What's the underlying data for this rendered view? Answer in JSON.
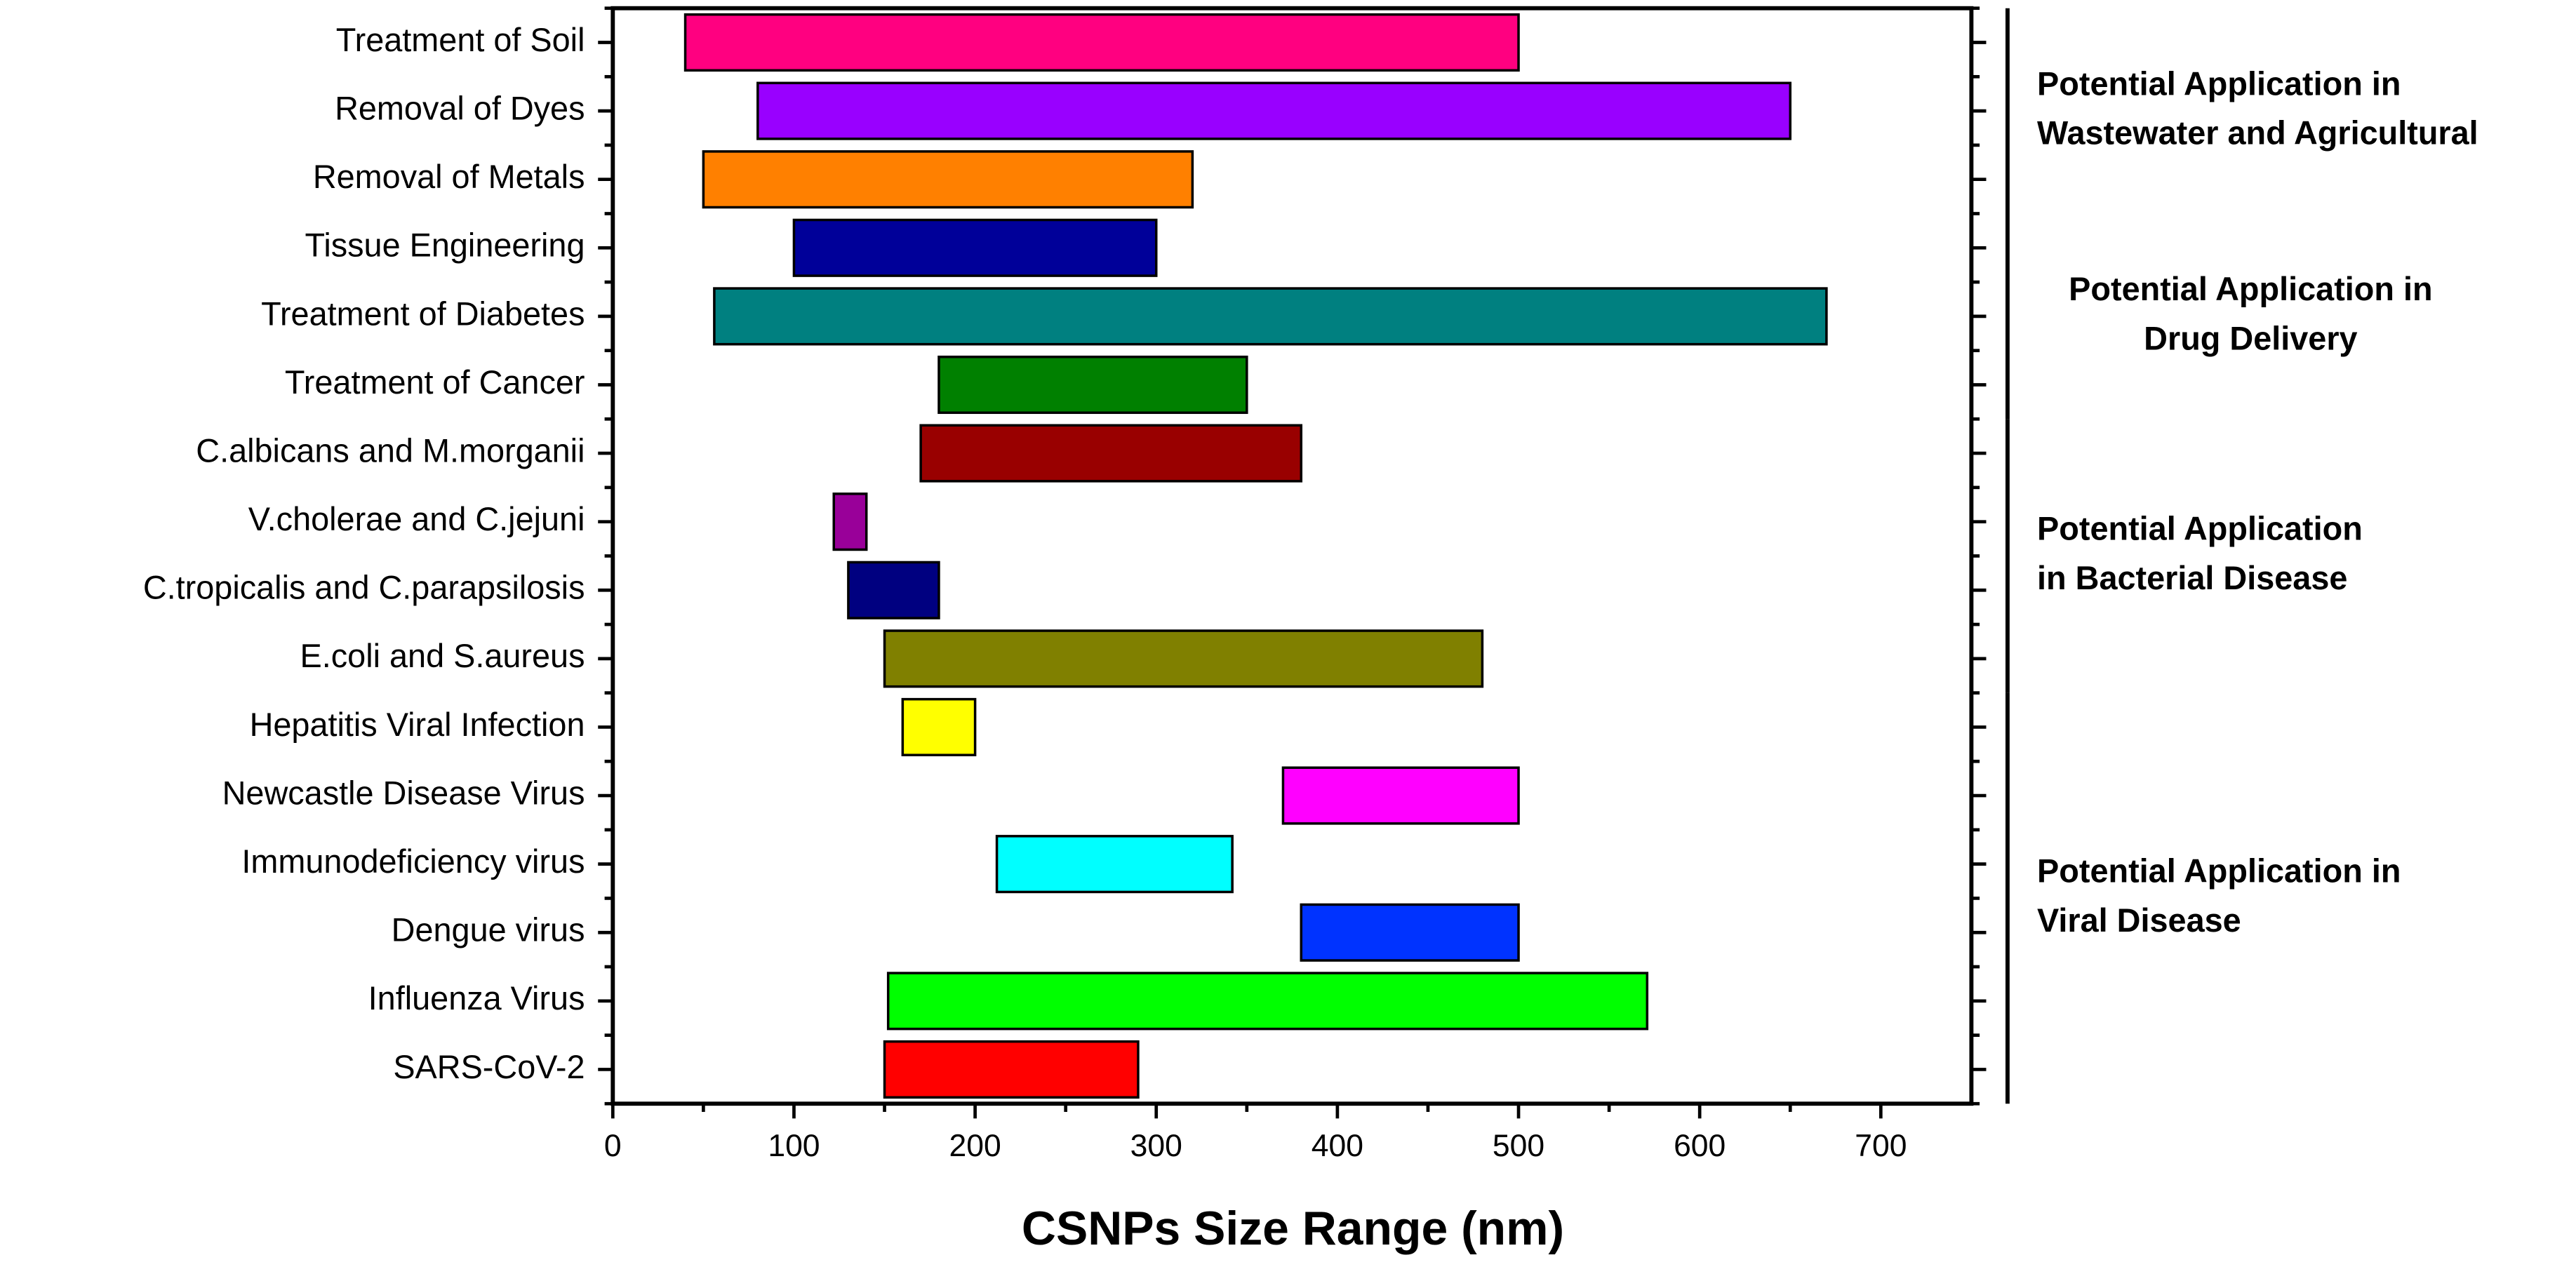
{
  "chart_data": {
    "type": "floating-bar",
    "categories": [
      "Treatment of Soil",
      "Removal of Dyes",
      "Removal of Metals",
      "Tissue Engineering",
      "Treatment of Diabetes",
      "Treatment of Cancer",
      "C.albicans and M.morganii",
      "V.cholerae and C.jejuni",
      "C.tropicalis and C.parapsilosis",
      "E.coli and S.aureus",
      "Hepatitis Viral Infection",
      "Newcastle Disease Virus",
      "Immunodeficiency virus",
      "Dengue virus",
      "Influenza Virus",
      "SARS-CoV-2"
    ],
    "starts": [
      40,
      80,
      50,
      100,
      56,
      180,
      170,
      122,
      130,
      150,
      160,
      370,
      212,
      380,
      152,
      150
    ],
    "ends": [
      500,
      650,
      320,
      300,
      670,
      350,
      380,
      140,
      180,
      480,
      200,
      500,
      342,
      500,
      571,
      290
    ],
    "colors": [
      "#ff0080",
      "#9900ff",
      "#ff8000",
      "#000099",
      "#008080",
      "#008000",
      "#990000",
      "#990099",
      "#000080",
      "#808000",
      "#ffff00",
      "#ff00ff",
      "#00ffff",
      "#0033ff",
      "#00ff00",
      "#ff0000"
    ],
    "x_label": "CSNPs Size Range (nm)",
    "xlim": [
      0,
      750
    ],
    "xticks": [
      0,
      100,
      200,
      300,
      400,
      500,
      600,
      700
    ],
    "annotations": [
      [
        "Potential Application in",
        "Wastewater and Agricultural"
      ],
      [
        "Potential Application in",
        "Drug Delivery"
      ],
      [
        "Potential  Application",
        "in Bacterial Disease"
      ],
      [
        "Potential Application in",
        "Viral Disease"
      ]
    ]
  }
}
